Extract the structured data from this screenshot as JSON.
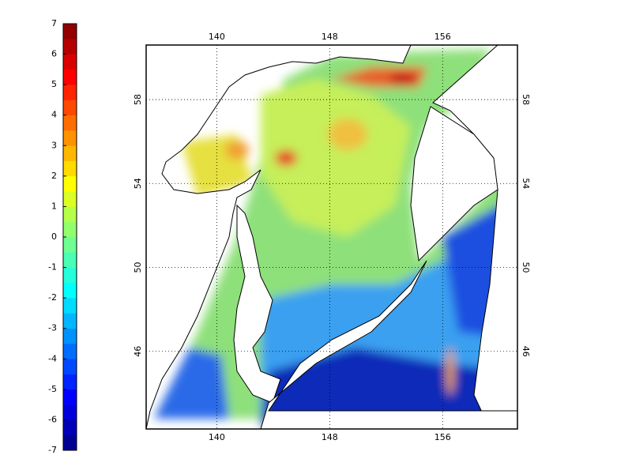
{
  "colorbar": {
    "lim": [
      -7,
      7
    ],
    "ticks": [
      7,
      6,
      5,
      4,
      3,
      2,
      1,
      0,
      -1,
      -2,
      -3,
      -4,
      -5,
      -6,
      -7
    ]
  },
  "map": {
    "lonlim": [
      135,
      161.3
    ],
    "latlim": [
      42.3,
      60.6
    ],
    "lon_ticks": [
      140,
      148,
      156
    ],
    "lat_ticks": [
      58,
      54,
      50,
      46
    ],
    "grid": true
  }
}
